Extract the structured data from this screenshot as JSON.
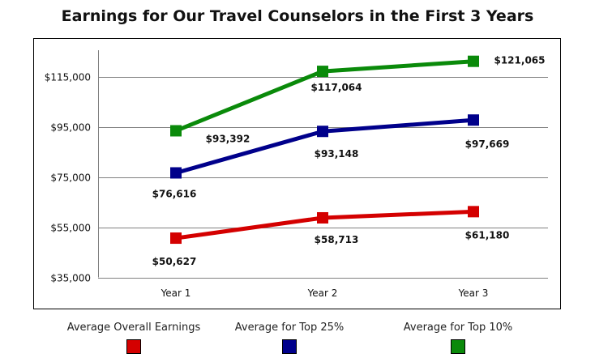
{
  "chart_data": {
    "type": "line",
    "title": "Earnings for Our Travel Counselors in the First 3 Years",
    "categories": [
      "Year 1",
      "Year 2",
      "Year 3"
    ],
    "ylim": [
      35000,
      125000
    ],
    "yticks": [
      35000,
      55000,
      75000,
      95000,
      115000
    ],
    "ytick_labels": [
      "$35,000",
      "$55,000",
      "$75,000",
      "$95,000",
      "$115,000"
    ],
    "grid": true,
    "legend_position": "bottom",
    "series": [
      {
        "name": "Average Overall Earnings",
        "color": "#d40000",
        "values": [
          50627,
          58713,
          61180
        ],
        "labels": [
          "$50,627",
          "$58,713",
          "$61,180"
        ]
      },
      {
        "name": "Average for Top 25%",
        "color": "#00008b",
        "values": [
          76616,
          93148,
          97669
        ],
        "labels": [
          "$76,616",
          "$93,148",
          "$97,669"
        ]
      },
      {
        "name": "Average for Top 10%",
        "color": "#0a8a0a",
        "values": [
          93392,
          117064,
          121065
        ],
        "labels": [
          "$93,392",
          "$117,064",
          "$121,065"
        ]
      }
    ]
  }
}
